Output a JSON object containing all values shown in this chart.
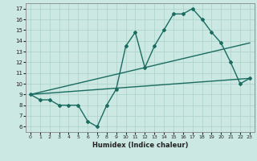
{
  "xlabel": "Humidex (Indice chaleur)",
  "bg_color": "#cbe8e3",
  "grid_color": "#b0d4cc",
  "line_color": "#1a6b60",
  "xlim": [
    -0.5,
    23.5
  ],
  "ylim": [
    5.5,
    17.5
  ],
  "xticks": [
    0,
    1,
    2,
    3,
    4,
    5,
    6,
    7,
    8,
    9,
    10,
    11,
    12,
    13,
    14,
    15,
    16,
    17,
    18,
    19,
    20,
    21,
    22,
    23
  ],
  "yticks": [
    6,
    7,
    8,
    9,
    10,
    11,
    12,
    13,
    14,
    15,
    16,
    17
  ],
  "line1_x": [
    0,
    1,
    2,
    3,
    4,
    5,
    6,
    7,
    8,
    9,
    10,
    11,
    12,
    13,
    14,
    15,
    16,
    17,
    18,
    19,
    20,
    21,
    22,
    23
  ],
  "line1_y": [
    9.0,
    8.5,
    8.5,
    8.0,
    8.0,
    8.0,
    6.5,
    6.0,
    8.0,
    9.5,
    13.5,
    14.8,
    11.5,
    13.5,
    15.0,
    16.5,
    16.5,
    17.0,
    16.0,
    14.8,
    13.8,
    12.0,
    10.0,
    10.5
  ],
  "line2_x": [
    0,
    23
  ],
  "line2_y": [
    9.0,
    13.8
  ],
  "line3_x": [
    0,
    23
  ],
  "line3_y": [
    9.0,
    10.5
  ]
}
